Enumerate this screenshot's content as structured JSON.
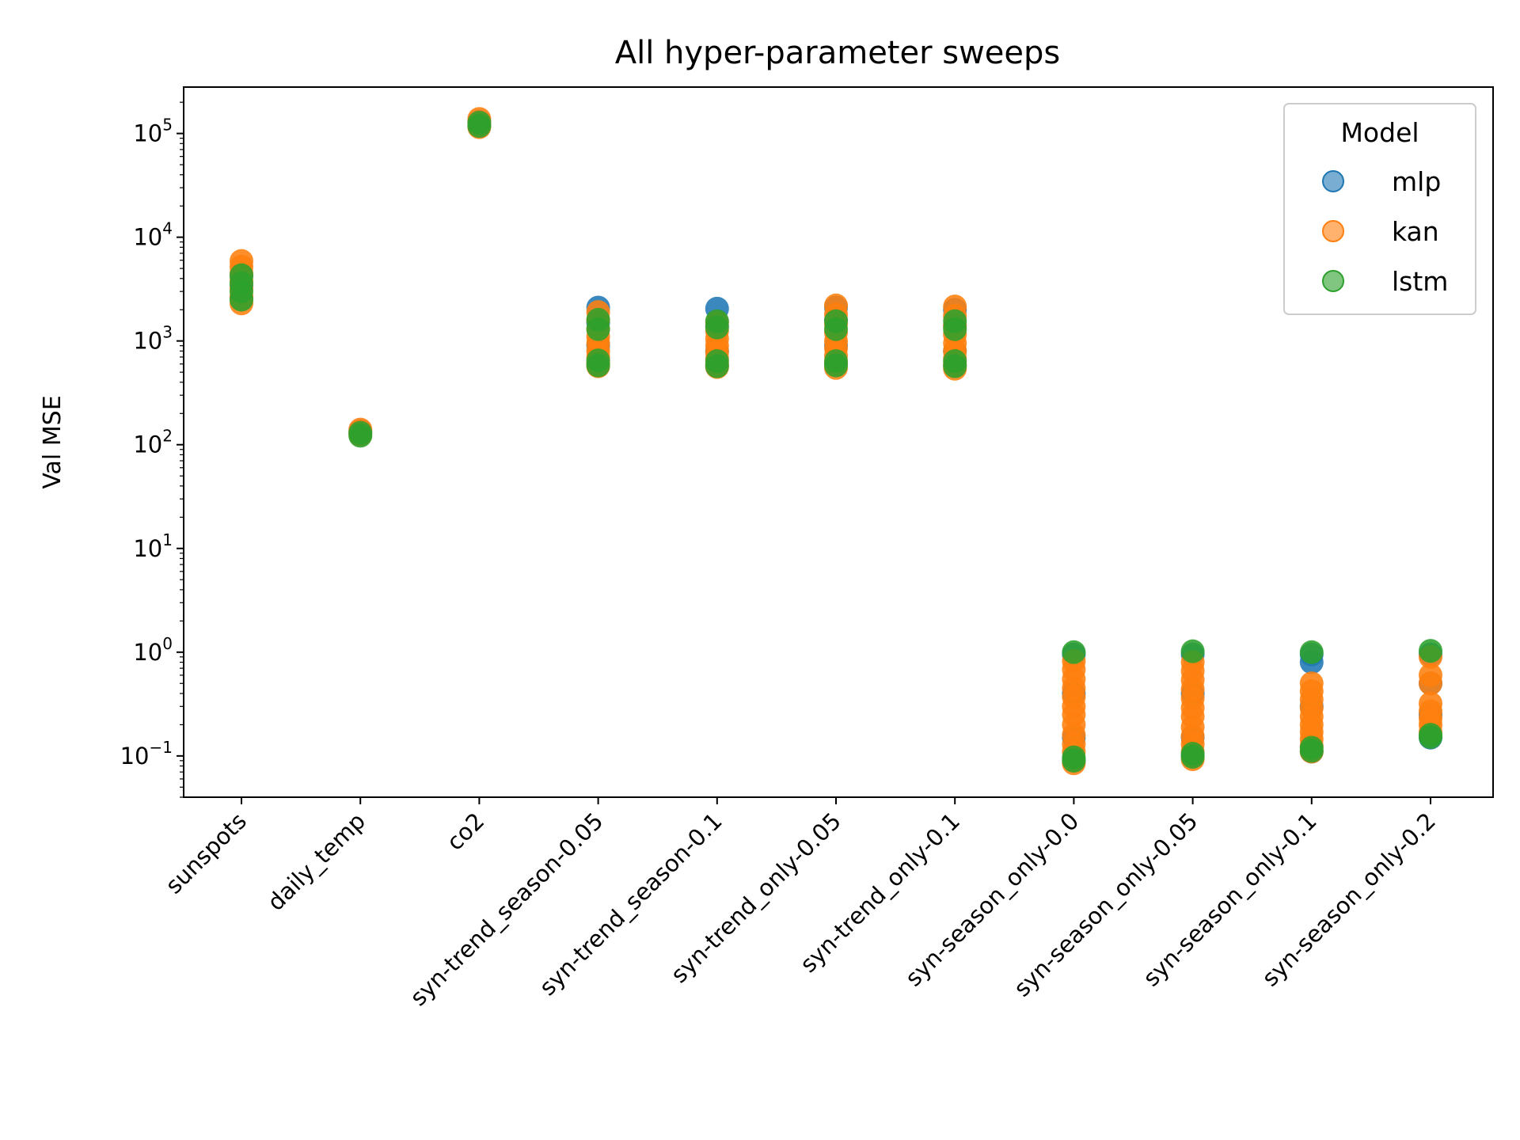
{
  "chart_data": {
    "type": "scatter",
    "title": "All hyper-parameter sweeps",
    "xlabel": "",
    "ylabel": "Val MSE",
    "yscale": "log",
    "ylim": [
      0.04,
      280000
    ],
    "yticks": [
      {
        "value": 0.1,
        "base": "10",
        "exp": "−1"
      },
      {
        "value": 1,
        "base": "10",
        "exp": "0"
      },
      {
        "value": 10,
        "base": "10",
        "exp": "1"
      },
      {
        "value": 100,
        "base": "10",
        "exp": "2"
      },
      {
        "value": 1000,
        "base": "10",
        "exp": "3"
      },
      {
        "value": 10000,
        "base": "10",
        "exp": "4"
      },
      {
        "value": 100000,
        "base": "10",
        "exp": "5"
      }
    ],
    "categories": [
      "sunspots",
      "daily_temp",
      "co2",
      "syn-trend_season-0.05",
      "syn-trend_season-0.1",
      "syn-trend_only-0.05",
      "syn-trend_only-0.1",
      "syn-season_only-0.0",
      "syn-season_only-0.05",
      "syn-season_only-0.1",
      "syn-season_only-0.2"
    ],
    "legend": {
      "title": "Model",
      "position": "top-right"
    },
    "grid": false,
    "series": [
      {
        "name": "mlp",
        "color": "#1f77b4",
        "points": [
          [
            "sunspots",
            2600
          ],
          [
            "sunspots",
            3400
          ],
          [
            "sunspots",
            4200
          ],
          [
            "daily_temp",
            128
          ],
          [
            "daily_temp",
            135
          ],
          [
            "co2",
            120000
          ],
          [
            "co2",
            130000
          ],
          [
            "syn-trend_season-0.05",
            2100
          ],
          [
            "syn-trend_season-0.05",
            1500
          ],
          [
            "syn-trend_season-0.05",
            900
          ],
          [
            "syn-trend_season-0.05",
            600
          ],
          [
            "syn-trend_season-0.1",
            2050
          ],
          [
            "syn-trend_season-0.1",
            1400
          ],
          [
            "syn-trend_season-0.1",
            800
          ],
          [
            "syn-trend_season-0.1",
            580
          ],
          [
            "syn-trend_only-0.05",
            2100
          ],
          [
            "syn-trend_only-0.05",
            1600
          ],
          [
            "syn-trend_only-0.05",
            900
          ],
          [
            "syn-trend_only-0.05",
            600
          ],
          [
            "syn-trend_only-0.1",
            2000
          ],
          [
            "syn-trend_only-0.1",
            1400
          ],
          [
            "syn-trend_only-0.1",
            800
          ],
          [
            "syn-trend_only-0.1",
            580
          ],
          [
            "syn-season_only-0.0",
            0.95
          ],
          [
            "syn-season_only-0.0",
            0.4
          ],
          [
            "syn-season_only-0.0",
            0.15
          ],
          [
            "syn-season_only-0.0",
            0.09
          ],
          [
            "syn-season_only-0.05",
            0.95
          ],
          [
            "syn-season_only-0.05",
            0.4
          ],
          [
            "syn-season_only-0.05",
            0.15
          ],
          [
            "syn-season_only-0.05",
            0.1
          ],
          [
            "syn-season_only-0.1",
            0.95
          ],
          [
            "syn-season_only-0.1",
            0.8
          ],
          [
            "syn-season_only-0.1",
            0.3
          ],
          [
            "syn-season_only-0.1",
            0.11
          ],
          [
            "syn-season_only-0.2",
            0.95
          ],
          [
            "syn-season_only-0.2",
            0.5
          ],
          [
            "syn-season_only-0.2",
            0.25
          ],
          [
            "syn-season_only-0.2",
            0.15
          ]
        ]
      },
      {
        "name": "kan",
        "color": "#ff7f0e",
        "points": [
          [
            "sunspots",
            2300
          ],
          [
            "sunspots",
            2700
          ],
          [
            "sunspots",
            3200
          ],
          [
            "sunspots",
            3800
          ],
          [
            "sunspots",
            4500
          ],
          [
            "sunspots",
            5200
          ],
          [
            "sunspots",
            5900
          ],
          [
            "daily_temp",
            125
          ],
          [
            "daily_temp",
            132
          ],
          [
            "daily_temp",
            140
          ],
          [
            "co2",
            115000
          ],
          [
            "co2",
            125000
          ],
          [
            "co2",
            138000
          ],
          [
            "syn-trend_season-0.05",
            1900
          ],
          [
            "syn-trend_season-0.05",
            1600
          ],
          [
            "syn-trend_season-0.05",
            1300
          ],
          [
            "syn-trend_season-0.05",
            1100
          ],
          [
            "syn-trend_season-0.05",
            950
          ],
          [
            "syn-trend_season-0.05",
            800
          ],
          [
            "syn-trend_season-0.05",
            700
          ],
          [
            "syn-trend_season-0.05",
            620
          ],
          [
            "syn-trend_season-0.05",
            570
          ],
          [
            "syn-trend_season-0.1",
            1500
          ],
          [
            "syn-trend_season-0.1",
            1250
          ],
          [
            "syn-trend_season-0.1",
            1050
          ],
          [
            "syn-trend_season-0.1",
            900
          ],
          [
            "syn-trend_season-0.1",
            780
          ],
          [
            "syn-trend_season-0.1",
            680
          ],
          [
            "syn-trend_season-0.1",
            600
          ],
          [
            "syn-trend_season-0.1",
            560
          ],
          [
            "syn-trend_only-0.05",
            2200
          ],
          [
            "syn-trend_only-0.05",
            1800
          ],
          [
            "syn-trend_only-0.05",
            1450
          ],
          [
            "syn-trend_only-0.05",
            1200
          ],
          [
            "syn-trend_only-0.05",
            1000
          ],
          [
            "syn-trend_only-0.05",
            850
          ],
          [
            "syn-trend_only-0.05",
            720
          ],
          [
            "syn-trend_only-0.05",
            620
          ],
          [
            "syn-trend_only-0.05",
            550
          ],
          [
            "syn-trend_only-0.1",
            2150
          ],
          [
            "syn-trend_only-0.1",
            1750
          ],
          [
            "syn-trend_only-0.1",
            1400
          ],
          [
            "syn-trend_only-0.1",
            1150
          ],
          [
            "syn-trend_only-0.1",
            950
          ],
          [
            "syn-trend_only-0.1",
            800
          ],
          [
            "syn-trend_only-0.1",
            680
          ],
          [
            "syn-trend_only-0.1",
            600
          ],
          [
            "syn-trend_only-0.1",
            540
          ],
          [
            "syn-season_only-0.0",
            0.82
          ],
          [
            "syn-season_only-0.0",
            0.68
          ],
          [
            "syn-season_only-0.0",
            0.55
          ],
          [
            "syn-season_only-0.0",
            0.45
          ],
          [
            "syn-season_only-0.0",
            0.37
          ],
          [
            "syn-season_only-0.0",
            0.3
          ],
          [
            "syn-season_only-0.0",
            0.25
          ],
          [
            "syn-season_only-0.0",
            0.2
          ],
          [
            "syn-season_only-0.0",
            0.16
          ],
          [
            "syn-season_only-0.0",
            0.13
          ],
          [
            "syn-season_only-0.0",
            0.11
          ],
          [
            "syn-season_only-0.0",
            0.085
          ],
          [
            "syn-season_only-0.05",
            0.8
          ],
          [
            "syn-season_only-0.05",
            0.66
          ],
          [
            "syn-season_only-0.05",
            0.54
          ],
          [
            "syn-season_only-0.05",
            0.44
          ],
          [
            "syn-season_only-0.05",
            0.36
          ],
          [
            "syn-season_only-0.05",
            0.29
          ],
          [
            "syn-season_only-0.05",
            0.24
          ],
          [
            "syn-season_only-0.05",
            0.19
          ],
          [
            "syn-season_only-0.05",
            0.155
          ],
          [
            "syn-season_only-0.05",
            0.13
          ],
          [
            "syn-season_only-0.05",
            0.11
          ],
          [
            "syn-season_only-0.05",
            0.093
          ],
          [
            "syn-season_only-0.1",
            0.5
          ],
          [
            "syn-season_only-0.1",
            0.42
          ],
          [
            "syn-season_only-0.1",
            0.35
          ],
          [
            "syn-season_only-0.1",
            0.29
          ],
          [
            "syn-season_only-0.1",
            0.24
          ],
          [
            "syn-season_only-0.1",
            0.2
          ],
          [
            "syn-season_only-0.1",
            0.17
          ],
          [
            "syn-season_only-0.1",
            0.145
          ],
          [
            "syn-season_only-0.1",
            0.125
          ],
          [
            "syn-season_only-0.1",
            0.11
          ],
          [
            "syn-season_only-0.2",
            0.9
          ],
          [
            "syn-season_only-0.2",
            0.6
          ],
          [
            "syn-season_only-0.2",
            0.5
          ],
          [
            "syn-season_only-0.2",
            0.32
          ],
          [
            "syn-season_only-0.2",
            0.27
          ],
          [
            "syn-season_only-0.2",
            0.23
          ],
          [
            "syn-season_only-0.2",
            0.2
          ],
          [
            "syn-season_only-0.2",
            0.17
          ]
        ]
      },
      {
        "name": "lstm",
        "color": "#2ca02c",
        "points": [
          [
            "sunspots",
            2500
          ],
          [
            "sunspots",
            3000
          ],
          [
            "sunspots",
            3600
          ],
          [
            "sunspots",
            4300
          ],
          [
            "daily_temp",
            122
          ],
          [
            "daily_temp",
            130
          ],
          [
            "co2",
            118000
          ],
          [
            "co2",
            127000
          ],
          [
            "syn-trend_season-0.05",
            1600
          ],
          [
            "syn-trend_season-0.05",
            1300
          ],
          [
            "syn-trend_season-0.05",
            650
          ],
          [
            "syn-trend_season-0.05",
            580
          ],
          [
            "syn-trend_season-0.1",
            1550
          ],
          [
            "syn-trend_season-0.1",
            1350
          ],
          [
            "syn-trend_season-0.1",
            640
          ],
          [
            "syn-trend_season-0.1",
            570
          ],
          [
            "syn-trend_only-0.05",
            1550
          ],
          [
            "syn-trend_only-0.05",
            1300
          ],
          [
            "syn-trend_only-0.05",
            640
          ],
          [
            "syn-trend_only-0.05",
            580
          ],
          [
            "syn-trend_only-0.1",
            1550
          ],
          [
            "syn-trend_only-0.1",
            1300
          ],
          [
            "syn-trend_only-0.1",
            640
          ],
          [
            "syn-trend_only-0.1",
            570
          ],
          [
            "syn-season_only-0.0",
            1.0
          ],
          [
            "syn-season_only-0.0",
            0.097
          ],
          [
            "syn-season_only-0.0",
            0.09
          ],
          [
            "syn-season_only-0.05",
            1.02
          ],
          [
            "syn-season_only-0.05",
            0.105
          ],
          [
            "syn-season_only-0.05",
            0.098
          ],
          [
            "syn-season_only-0.1",
            1.0
          ],
          [
            "syn-season_only-0.1",
            0.12
          ],
          [
            "syn-season_only-0.1",
            0.112
          ],
          [
            "syn-season_only-0.2",
            1.03
          ],
          [
            "syn-season_only-0.2",
            0.16
          ],
          [
            "syn-season_only-0.2",
            0.152
          ]
        ]
      }
    ]
  }
}
